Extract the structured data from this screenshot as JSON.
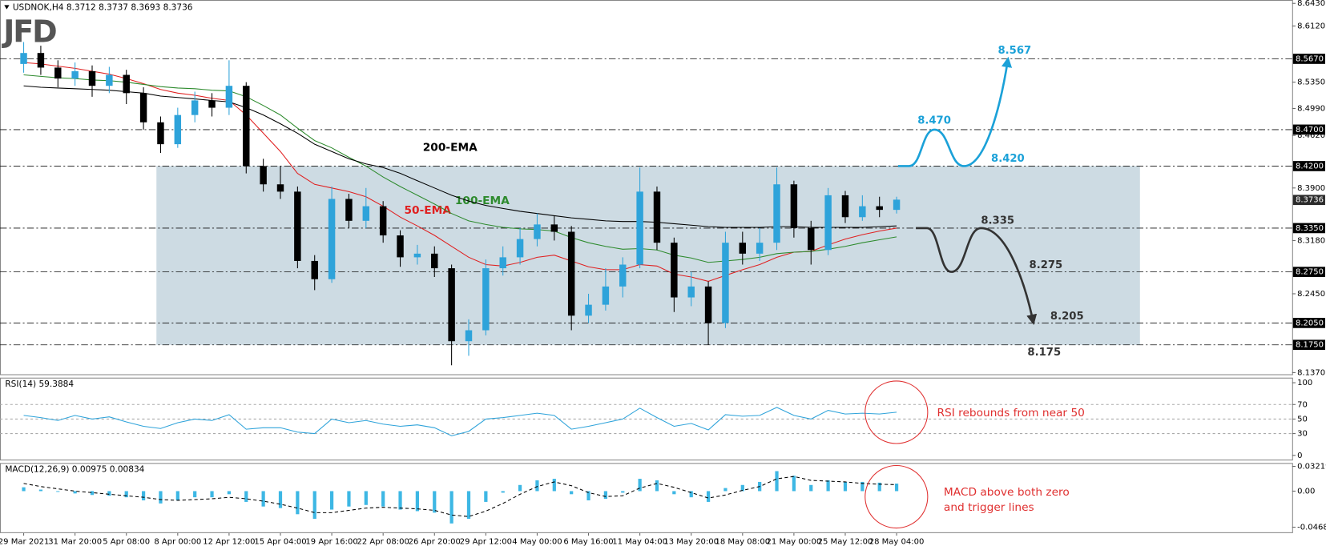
{
  "chart_data": [
    {
      "type": "candlestick",
      "header": "USDNOK,H4  8.3712 8.3737 8.3693 8.3736",
      "logo": "JFD",
      "categories": [
        "29 Mar 2021",
        null,
        null,
        "31 Mar 20:00",
        null,
        null,
        "5 Apr 08:00",
        null,
        null,
        "8 Apr 00:00",
        null,
        null,
        "12 Apr 12:00",
        null,
        null,
        "15 Apr 04:00",
        null,
        null,
        "19 Apr 16:00",
        null,
        null,
        "22 Apr 08:00",
        null,
        null,
        "26 Apr 20:00",
        null,
        null,
        "29 Apr 12:00",
        null,
        null,
        "4 May 00:00",
        null,
        null,
        "6 May 16:00",
        null,
        null,
        "11 May 04:00",
        null,
        null,
        "13 May 20:00",
        null,
        null,
        "18 May 08:00",
        null,
        null,
        "21 May 00:00",
        null,
        null,
        "25 May 12:00",
        null,
        null,
        "28 May 04:00"
      ],
      "open": [
        8.56,
        8.575,
        8.555,
        8.54,
        8.55,
        8.53,
        8.545,
        8.52,
        8.48,
        8.45,
        8.49,
        8.51,
        8.5,
        8.53,
        8.42,
        8.395,
        8.385,
        8.29,
        8.265,
        8.375,
        8.345,
        8.365,
        8.325,
        8.295,
        8.3,
        8.28,
        8.18,
        8.195,
        8.28,
        8.295,
        8.32,
        8.34,
        8.33,
        8.215,
        8.23,
        8.255,
        8.285,
        8.385,
        8.315,
        8.24,
        8.255,
        8.205,
        8.315,
        8.3,
        8.315,
        8.395,
        8.335,
        8.305,
        8.38,
        8.35,
        8.365,
        8.36
      ],
      "high": [
        8.59,
        8.585,
        8.565,
        8.562,
        8.558,
        8.556,
        8.552,
        8.528,
        8.488,
        8.5,
        8.522,
        8.52,
        8.565,
        8.535,
        8.43,
        8.42,
        8.392,
        8.298,
        8.392,
        8.382,
        8.39,
        8.372,
        8.332,
        8.312,
        8.31,
        8.285,
        8.21,
        8.292,
        8.31,
        8.335,
        8.355,
        8.352,
        8.338,
        8.245,
        8.28,
        8.295,
        8.418,
        8.392,
        8.322,
        8.275,
        8.262,
        8.33,
        8.33,
        8.335,
        8.418,
        8.4,
        8.345,
        8.39,
        8.386,
        8.38,
        8.378,
        8.378
      ],
      "low": [
        8.548,
        8.545,
        8.528,
        8.53,
        8.515,
        8.52,
        8.505,
        8.47,
        8.438,
        8.445,
        8.48,
        8.488,
        8.49,
        8.41,
        8.385,
        8.375,
        8.28,
        8.25,
        8.26,
        8.335,
        8.335,
        8.315,
        8.282,
        8.285,
        8.268,
        8.147,
        8.16,
        8.188,
        8.27,
        8.285,
        8.31,
        8.318,
        8.195,
        8.205,
        8.222,
        8.24,
        8.28,
        8.305,
        8.22,
        8.228,
        8.175,
        8.198,
        8.285,
        8.29,
        8.305,
        8.322,
        8.285,
        8.298,
        8.342,
        8.345,
        8.35,
        8.355
      ],
      "close": [
        8.575,
        8.555,
        8.54,
        8.55,
        8.53,
        8.545,
        8.52,
        8.48,
        8.45,
        8.49,
        8.51,
        8.5,
        8.53,
        8.42,
        8.395,
        8.385,
        8.29,
        8.265,
        8.375,
        8.345,
        8.365,
        8.325,
        8.295,
        8.3,
        8.28,
        8.18,
        8.195,
        8.28,
        8.295,
        8.32,
        8.34,
        8.33,
        8.215,
        8.23,
        8.255,
        8.285,
        8.385,
        8.315,
        8.24,
        8.255,
        8.205,
        8.315,
        8.3,
        8.315,
        8.395,
        8.335,
        8.305,
        8.38,
        8.35,
        8.365,
        8.36,
        8.374
      ],
      "up_color": "#2ea3da",
      "down_color": "#000000",
      "series": [
        {
          "name": "50-EMA",
          "color": "#e02020",
          "values": [
            8.562,
            8.56,
            8.557,
            8.554,
            8.55,
            8.546,
            8.54,
            8.533,
            8.525,
            8.52,
            8.517,
            8.513,
            8.51,
            8.49,
            8.465,
            8.44,
            8.41,
            8.395,
            8.39,
            8.385,
            8.378,
            8.365,
            8.35,
            8.338,
            8.325,
            8.31,
            8.295,
            8.285,
            8.283,
            8.288,
            8.295,
            8.298,
            8.29,
            8.282,
            8.278,
            8.278,
            8.285,
            8.283,
            8.272,
            8.268,
            8.262,
            8.27,
            8.278,
            8.285,
            8.295,
            8.302,
            8.303,
            8.312,
            8.32,
            8.326,
            8.331,
            8.335
          ]
        },
        {
          "name": "100-EMA",
          "color": "#2e8b2e",
          "values": [
            8.545,
            8.543,
            8.541,
            8.54,
            8.538,
            8.537,
            8.535,
            8.532,
            8.529,
            8.527,
            8.526,
            8.524,
            8.523,
            8.515,
            8.503,
            8.49,
            8.472,
            8.455,
            8.445,
            8.432,
            8.42,
            8.405,
            8.392,
            8.38,
            8.368,
            8.355,
            8.345,
            8.34,
            8.336,
            8.334,
            8.333,
            8.331,
            8.322,
            8.315,
            8.31,
            8.306,
            8.307,
            8.305,
            8.298,
            8.294,
            8.288,
            8.29,
            8.292,
            8.295,
            8.3,
            8.302,
            8.303,
            8.306,
            8.31,
            8.315,
            8.319,
            8.323
          ]
        },
        {
          "name": "200-EMA",
          "color": "#000000",
          "values": [
            8.53,
            8.528,
            8.527,
            8.526,
            8.525,
            8.524,
            8.522,
            8.52,
            8.516,
            8.514,
            8.512,
            8.51,
            8.508,
            8.5,
            8.49,
            8.478,
            8.465,
            8.45,
            8.44,
            8.43,
            8.423,
            8.418,
            8.41,
            8.4,
            8.39,
            8.38,
            8.372,
            8.366,
            8.362,
            8.358,
            8.355,
            8.352,
            8.349,
            8.347,
            8.345,
            8.344,
            8.344,
            8.343,
            8.341,
            8.339,
            8.337,
            8.336,
            8.336,
            8.336,
            8.337,
            8.337,
            8.336,
            8.336,
            8.336,
            8.336,
            8.337,
            8.338
          ]
        }
      ],
      "ylim": [
        8.137,
        8.643
      ],
      "yticks": [
        {
          "value": 8.643,
          "label": "8.6430"
        },
        {
          "value": 8.612,
          "label": "8.6120"
        },
        {
          "value": 8.535,
          "label": "8.5350"
        },
        {
          "value": 8.499,
          "label": "8.4990"
        },
        {
          "value": 8.462,
          "label": "8.4620"
        },
        {
          "value": 8.39,
          "label": "8.3900"
        },
        {
          "value": 8.318,
          "label": "8.3180"
        },
        {
          "value": 8.245,
          "label": "8.2450"
        },
        {
          "value": 8.137,
          "label": "8.1370"
        }
      ],
      "levels": [
        {
          "value": 8.567,
          "label": "8.5670"
        },
        {
          "value": 8.47,
          "label": "8.4700"
        },
        {
          "value": 8.42,
          "label": "8.4200"
        },
        {
          "value": 8.335,
          "label": "8.3350"
        },
        {
          "value": 8.275,
          "label": "8.2750"
        },
        {
          "value": 8.205,
          "label": "8.2050"
        },
        {
          "value": 8.175,
          "label": "8.1750"
        }
      ],
      "last": 8.3736,
      "shaded_range": {
        "values": [
          8.175,
          8.42
        ],
        "color": "#cddbe3"
      },
      "projections": [
        {
          "color": "#1ba1d8",
          "points": [
            {
              "value": 8.47,
              "label": "8.470"
            },
            {
              "value": 8.42,
              "label": "8.420"
            },
            8.567
          ]
        },
        {
          "color": "#333333",
          "points": [
            8.335,
            8.275,
            8.205,
            8.175
          ]
        }
      ]
    },
    {
      "type": "line",
      "title": "RSI(14) 59.3884",
      "color": "#2ea3da",
      "grid": true,
      "values": [
        55,
        52,
        48,
        55,
        50,
        53,
        46,
        40,
        37,
        45,
        50,
        48,
        56,
        36,
        38,
        38,
        32,
        30,
        50,
        45,
        48,
        43,
        40,
        42,
        38,
        27,
        33,
        50,
        52,
        55,
        58,
        55,
        36,
        40,
        45,
        50,
        65,
        52,
        40,
        44,
        35,
        56,
        54,
        55,
        66,
        55,
        50,
        62,
        57,
        58,
        57,
        59.3884
      ],
      "ylim": [
        0,
        100
      ],
      "yticks": [
        0,
        30,
        50,
        70,
        100
      ],
      "annotation": "RSI rebounds from near 50"
    },
    {
      "type": "bar",
      "title": "MACD(12,26,9) 0.00975 0.00834",
      "series": [
        {
          "color": "#3db7e4",
          "values": [
            0.005,
            0.002,
            -0.001,
            -0.003,
            -0.005,
            -0.006,
            -0.008,
            -0.012,
            -0.016,
            -0.012,
            -0.008,
            -0.008,
            -0.004,
            -0.014,
            -0.02,
            -0.022,
            -0.03,
            -0.036,
            -0.024,
            -0.02,
            -0.018,
            -0.02,
            -0.024,
            -0.026,
            -0.028,
            -0.042,
            -0.036,
            -0.014,
            -0.002,
            0.008,
            0.014,
            0.016,
            -0.004,
            -0.012,
            -0.01,
            -0.002,
            0.016,
            0.014,
            -0.004,
            -0.008,
            -0.014,
            0.004,
            0.008,
            0.012,
            0.026,
            0.02,
            0.008,
            0.014,
            0.012,
            0.012,
            0.011,
            0.00975
          ]
        },
        {
          "color": "#000000",
          "values": [
            0.01,
            0.006,
            0.003,
            0,
            -0.002,
            -0.004,
            -0.006,
            -0.008,
            -0.011,
            -0.012,
            -0.011,
            -0.01,
            -0.008,
            -0.01,
            -0.013,
            -0.017,
            -0.022,
            -0.028,
            -0.028,
            -0.025,
            -0.022,
            -0.021,
            -0.022,
            -0.023,
            -0.025,
            -0.031,
            -0.033,
            -0.026,
            -0.016,
            -0.004,
            0.006,
            0.012,
            0.007,
            -0.002,
            -0.007,
            -0.006,
            0.004,
            0.01,
            0.005,
            -0.002,
            -0.009,
            -0.005,
            0.001,
            0.006,
            0.016,
            0.019,
            0.014,
            0.013,
            0.012,
            0.01,
            0.009,
            0.00834
          ]
        }
      ],
      "ylim": [
        -0.04686,
        0.03219
      ],
      "yticks": [
        -0.04686,
        {
          "value": 0,
          "label": "0.00"
        },
        0.03219
      ],
      "annotation": [
        "MACD above both zero",
        "and trigger lines"
      ]
    }
  ]
}
